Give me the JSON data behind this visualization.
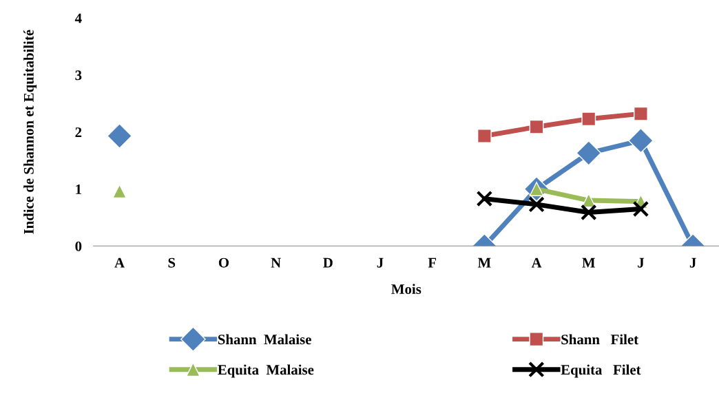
{
  "chart_data": {
    "type": "line",
    "xlabel": "Mois",
    "ylabel": "Indice de Shannon et Equitabilité",
    "categories": [
      "A",
      "S",
      "O",
      "N",
      "D",
      "J",
      "F",
      "M",
      "A",
      "M",
      "J",
      "J"
    ],
    "ylim": [
      0,
      4
    ],
    "yticks": [
      0,
      1,
      2,
      3,
      4
    ],
    "grid": false,
    "legend": "bottom",
    "series": [
      {
        "name": "Shann  Malaise",
        "color": "#4f81bd",
        "marker": "diamond",
        "values": [
          1.93,
          null,
          null,
          null,
          null,
          null,
          null,
          0,
          1.0,
          1.63,
          1.85,
          0
        ]
      },
      {
        "name": "Shann   Filet",
        "color": "#c0504d",
        "marker": "square",
        "values": [
          null,
          null,
          null,
          null,
          null,
          null,
          null,
          1.93,
          2.09,
          2.23,
          2.32,
          null
        ]
      },
      {
        "name": "Equita  Malaise",
        "color": "#9bbb59",
        "marker": "triangle",
        "values": [
          0.96,
          null,
          null,
          null,
          null,
          null,
          null,
          null,
          1.0,
          0.8,
          0.78,
          null
        ]
      },
      {
        "name": "Equita   Filet",
        "color": "#000000",
        "marker": "cross",
        "values": [
          null,
          null,
          null,
          null,
          null,
          null,
          null,
          0.83,
          0.73,
          0.59,
          0.65,
          null
        ]
      }
    ]
  }
}
